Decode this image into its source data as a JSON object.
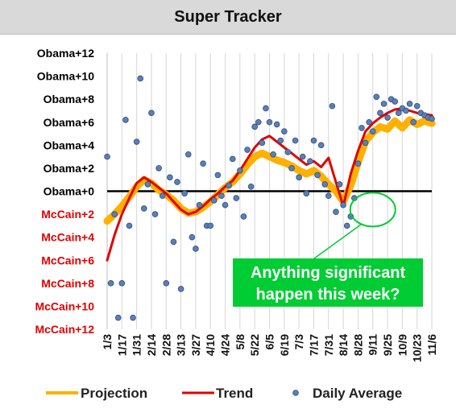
{
  "chart_data": {
    "type": "line",
    "title": "Super Tracker",
    "y_tick_labels": [
      "Obama+12",
      "Obama+10",
      "Obama+8",
      "Obama+6",
      "Obama+4",
      "Obama+2",
      "Obama+0",
      "McCain+2",
      "McCain+4",
      "McCain+6",
      "McCain+8",
      "McCain+10",
      "McCain+12"
    ],
    "y_tick_values": [
      12,
      10,
      8,
      6,
      4,
      2,
      0,
      -2,
      -4,
      -6,
      -8,
      -10,
      -12
    ],
    "ylim": [
      -12,
      12
    ],
    "x_tick_labels": [
      "1/3",
      "1/17",
      "1/31",
      "2/14",
      "2/28",
      "3/13",
      "3/27",
      "4/10",
      "4/24",
      "5/8",
      "5/22",
      "6/5",
      "6/19",
      "7/3",
      "7/17",
      "7/31",
      "8/14",
      "8/28",
      "9/11",
      "9/25",
      "10/9",
      "10/23",
      "11/6"
    ],
    "xlim": [
      0,
      22
    ],
    "colors": {
      "obama": "#000000",
      "mccain": "#e00000",
      "projection": "#ffb000",
      "trend": "#e00000",
      "daily": "#5b7fb5",
      "annotation": "#00cc33"
    },
    "series": [
      {
        "name": "Projection",
        "x": [
          0,
          0.5,
          1,
          1.5,
          2,
          2.5,
          3,
          3.5,
          4,
          4.5,
          5,
          5.5,
          6,
          6.5,
          7,
          7.5,
          8,
          8.5,
          9,
          9.5,
          10,
          10.5,
          11,
          11.5,
          12,
          12.5,
          13,
          13.5,
          14,
          14.5,
          15,
          15.5,
          16,
          16.5,
          17,
          17.5,
          18,
          18.5,
          19,
          19.5,
          20,
          20.5,
          21,
          21.5,
          22
        ],
        "values": [
          -2.6,
          -2,
          -1.3,
          -0.5,
          0.4,
          1,
          0.7,
          0.1,
          -0.3,
          -0.8,
          -1.5,
          -1.9,
          -1.8,
          -1.4,
          -0.9,
          -0.3,
          0.3,
          0.8,
          1.5,
          2.3,
          3,
          3.3,
          3,
          2.7,
          2.5,
          2.2,
          1.8,
          1.5,
          1.8,
          1.3,
          0.6,
          0,
          -0.9,
          0.5,
          2.5,
          4.3,
          5.1,
          5.6,
          5.4,
          6.1,
          5.5,
          6.2,
          5.8,
          6.1,
          5.9
        ]
      },
      {
        "name": "Trend",
        "x": [
          0,
          0.5,
          1,
          1.5,
          2,
          2.5,
          3,
          3.5,
          4,
          4.5,
          5,
          5.5,
          6,
          6.5,
          7,
          7.5,
          8,
          8.5,
          9,
          9.5,
          10,
          10.5,
          11,
          11.5,
          12,
          12.5,
          13,
          13.5,
          14,
          14.5,
          15,
          15.5,
          16,
          16.5,
          17,
          17.5,
          18,
          18.5,
          19,
          19.5,
          20,
          20.5,
          21,
          21.5,
          22
        ],
        "values": [
          -6,
          -3.8,
          -2,
          -0.6,
          0.7,
          1.2,
          0.8,
          0.3,
          -0.2,
          -0.9,
          -1.6,
          -2,
          -1.8,
          -1.3,
          -0.7,
          -0.2,
          0.4,
          0.9,
          1.8,
          2.8,
          3.8,
          4.5,
          4.8,
          4.3,
          3.8,
          3.3,
          2.8,
          2.3,
          2.6,
          2.1,
          2.9,
          0.8,
          -1.3,
          1.5,
          3.5,
          5.2,
          5.9,
          6.4,
          6.8,
          7.1,
          7.2,
          7.0,
          6.8,
          6.7,
          6.6
        ]
      },
      {
        "name": "Daily Average",
        "x": [
          0,
          0.25,
          0.5,
          0.75,
          1,
          1.25,
          1.5,
          1.75,
          2,
          2.25,
          2.5,
          2.75,
          3,
          3.25,
          3.5,
          3.75,
          4,
          4.25,
          4.5,
          4.75,
          5,
          5.25,
          5.5,
          5.75,
          6,
          6.25,
          6.5,
          6.75,
          7,
          7.25,
          7.5,
          7.75,
          8,
          8.25,
          8.5,
          8.75,
          9,
          9.25,
          9.5,
          9.75,
          10,
          10.25,
          10.5,
          10.75,
          11,
          11.25,
          11.5,
          11.75,
          12,
          12.25,
          12.5,
          12.75,
          13,
          13.25,
          13.5,
          13.75,
          14,
          14.25,
          14.5,
          14.75,
          15,
          15.25,
          15.5,
          15.75,
          16,
          16.25,
          16.5,
          16.75,
          17,
          17.25,
          17.5,
          17.75,
          18,
          18.25,
          18.5,
          18.75,
          19,
          19.25,
          19.5,
          19.75,
          20,
          20.25,
          20.5,
          20.75,
          21,
          21.25,
          21.5,
          21.75,
          22
        ],
        "values": [
          3,
          -8,
          -2,
          -11,
          -8,
          6.2,
          -3,
          -11,
          4.3,
          9.8,
          -1.5,
          0.6,
          6.8,
          -2,
          2,
          -0.4,
          -8,
          1.2,
          -4.4,
          0.8,
          -8.5,
          -0.2,
          3.2,
          -4,
          -5,
          -1.2,
          2.4,
          -3,
          -3,
          -0.8,
          1.4,
          -0.4,
          -1.2,
          0.5,
          2.8,
          -0.6,
          1.8,
          -2.2,
          3.6,
          0.4,
          5.6,
          6,
          4.2,
          7.2,
          6,
          3.2,
          5.8,
          4.4,
          5.2,
          3.4,
          2,
          4.4,
          1.2,
          3,
          -0.2,
          2.6,
          4.4,
          1.4,
          4,
          0.6,
          -0.4,
          7.4,
          -1.8,
          0.6,
          -1.2,
          -3,
          -2.2,
          -0.6,
          2.4,
          5.5,
          4.2,
          6,
          5.2,
          8.2,
          6.8,
          7.6,
          6.4,
          8,
          7.8,
          6.8,
          7.2,
          7,
          7.6,
          6,
          7.4,
          6.8,
          6.6,
          6.4,
          6.3
        ]
      }
    ],
    "legend": {
      "placement": "bottom",
      "entries": [
        "Projection",
        "Trend",
        "Daily Average"
      ]
    },
    "annotation": {
      "text_line1": "Anything significant",
      "text_line2": "happen this week?"
    },
    "grid": {
      "vertical": true,
      "horizontal": false
    }
  }
}
